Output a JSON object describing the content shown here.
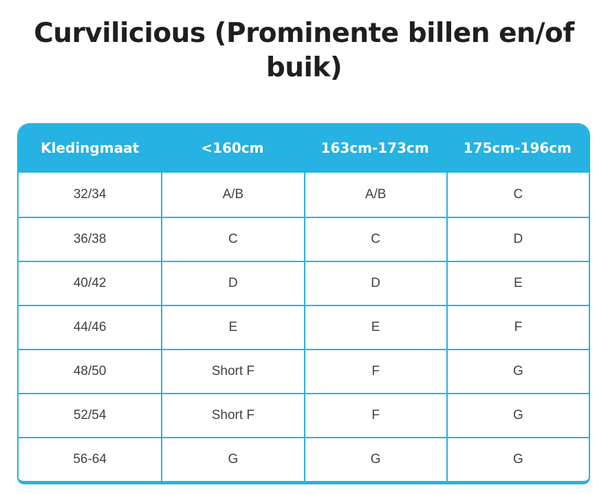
{
  "title": {
    "full": "Curvilicious (Prominente billen en/of buik)",
    "lines": [
      "Curvilicious (Prominente billen en/of",
      "buik)"
    ]
  },
  "colors": {
    "accent": "#26b2e2",
    "header_text": "#ffffff",
    "title_text": "#221e1f",
    "cell_text": "#404040",
    "background": "#ffffff"
  },
  "table": {
    "headers": [
      "Kledingmaat",
      "<160cm",
      "163cm-173cm",
      "175cm-196cm"
    ],
    "rows": [
      [
        "32/34",
        "A/B",
        "A/B",
        "C"
      ],
      [
        "36/38",
        "C",
        "C",
        "D"
      ],
      [
        "40/42",
        "D",
        "D",
        "E"
      ],
      [
        "44/46",
        "E",
        "E",
        "F"
      ],
      [
        "48/50",
        "Short F",
        "F",
        "G"
      ],
      [
        "52/54",
        "Short F",
        "F",
        "G"
      ],
      [
        "56-64",
        "G",
        "G",
        "G"
      ]
    ]
  }
}
